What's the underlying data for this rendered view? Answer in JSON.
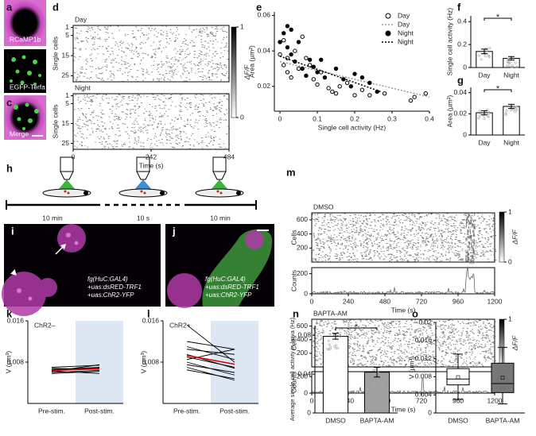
{
  "panel_letters": [
    "a",
    "b",
    "c",
    "d",
    "e",
    "f",
    "g",
    "h",
    "i",
    "j",
    "k",
    "l",
    "m",
    "n",
    "o"
  ],
  "images": {
    "a": "RCaMP1b",
    "b": "EGFP-Terfa",
    "c": "Merge",
    "i": [
      "fg(HuC:GAL4)",
      "+uas:dsRED-TRF1",
      "+uas:ChR2-YFP"
    ],
    "j": [
      "fg(HuC:GAL4)",
      "+uas:dsRED-TRF1",
      "+uas:ChR2-YFP"
    ]
  },
  "protocol": {
    "durations": [
      "10 min",
      "10 s",
      "10 min"
    ]
  },
  "chart_data": [
    {
      "type": "raster",
      "title": "Day",
      "ylabel": "Single cells",
      "ylim": [
        28,
        0
      ],
      "yticks": [
        1,
        5,
        15,
        25
      ],
      "xlim": [
        0,
        484
      ]
    },
    {
      "type": "raster",
      "title": "Night",
      "ylabel": "Single cells",
      "ylim": [
        28,
        0
      ],
      "yticks": [
        1,
        5,
        15,
        25
      ],
      "xlim": [
        0,
        484
      ],
      "xticks": [
        0,
        242,
        484
      ],
      "xlabel": "Time (s)"
    },
    {
      "type": "colorbar",
      "label": "ΔF/F",
      "ylim": [
        0,
        1
      ],
      "yticks": [
        0,
        1
      ]
    },
    {
      "type": "scatter",
      "xlabel": "Single cell activity (Hz)",
      "ylabel": "Area (µm²)",
      "xlim": [
        -0.015,
        0.4
      ],
      "xticks": [
        0,
        0.1,
        0.2,
        0.3,
        0.4
      ],
      "ylim": [
        0.006,
        0.062
      ],
      "yticks": [
        0.02,
        0.04,
        0.06
      ],
      "legend": "upper right",
      "series": [
        {
          "name": "Day",
          "marker": "open",
          "color": "#000000",
          "x": [
            0.01,
            0.02,
            0.02,
            0.03,
            0.04,
            0.05,
            0.06,
            0.07,
            0.08,
            0.09,
            0.1,
            0.11,
            0.13,
            0.14,
            0.15,
            0.16,
            0.18,
            0.2,
            0.22,
            0.24,
            0.28,
            0.35,
            0.36,
            0.39,
            0.0,
            0.01
          ],
          "values": [
            0.032,
            0.028,
            0.036,
            0.025,
            0.04,
            0.03,
            0.048,
            0.036,
            0.032,
            0.024,
            0.021,
            0.028,
            0.019,
            0.017,
            0.016,
            0.02,
            0.022,
            0.015,
            0.018,
            0.015,
            0.016,
            0.012,
            0.014,
            0.016,
            0.038,
            0.046
          ]
        },
        {
          "name": "Day",
          "style": "dotted",
          "color": "#999999",
          "x": [
            0,
            0.4
          ],
          "values": [
            0.034,
            0.014
          ]
        },
        {
          "name": "Night",
          "marker": "filled",
          "color": "#000000",
          "x": [
            0.0,
            0.01,
            0.02,
            0.02,
            0.03,
            0.03,
            0.04,
            0.05,
            0.06,
            0.07,
            0.08,
            0.09,
            0.1,
            0.11,
            0.12,
            0.15,
            0.17,
            0.19,
            0.2,
            0.22,
            0.24,
            0.26
          ],
          "values": [
            0.045,
            0.05,
            0.054,
            0.042,
            0.038,
            0.052,
            0.034,
            0.045,
            0.03,
            0.026,
            0.035,
            0.031,
            0.028,
            0.035,
            0.025,
            0.03,
            0.024,
            0.02,
            0.027,
            0.025,
            0.022,
            0.017
          ]
        },
        {
          "name": "Night",
          "style": "dotted",
          "color": "#000000",
          "x": [
            0,
            0.27
          ],
          "values": [
            0.037,
            0.017
          ]
        }
      ]
    },
    {
      "type": "bar",
      "ylabel": "Single cell activity (Hz)",
      "categories": [
        "Day",
        "Night"
      ],
      "values": [
        0.14,
        0.08
      ],
      "errors": [
        0.02,
        0.015
      ],
      "colors": [
        "#ffffff",
        "#ffffff"
      ],
      "ylim": [
        0,
        0.45
      ],
      "yticks": [
        0,
        0.2,
        0.4
      ],
      "annotation": "*"
    },
    {
      "type": "bar",
      "ylabel": "Area (µm²)",
      "categories": [
        "Day",
        "Night"
      ],
      "values": [
        0.021,
        0.027
      ],
      "errors": [
        0.002,
        0.002
      ],
      "colors": [
        "#ffffff",
        "#ffffff"
      ],
      "ylim": [
        0,
        0.045
      ],
      "yticks": [
        0,
        0.02,
        0.04
      ],
      "annotation": "*"
    },
    {
      "type": "raster",
      "title": "DMSO",
      "ylabel": "Cells",
      "ylim": [
        0,
        700
      ],
      "yticks": [
        200,
        400,
        600
      ],
      "xlim": [
        0,
        1200
      ]
    },
    {
      "type": "trace",
      "ylabel": "Counts",
      "ylim": [
        0,
        260
      ],
      "yticks": [
        0,
        200
      ],
      "xlim": [
        0,
        1200
      ],
      "xticks": [
        0,
        240,
        480,
        720,
        960,
        1200
      ],
      "xlabel": "Time (s)"
    },
    {
      "type": "colorbar",
      "label": "ΔF/F",
      "ylim": [
        0,
        1
      ],
      "yticks": [
        0,
        1
      ]
    },
    {
      "type": "raster",
      "title": "BAPTA-AM",
      "ylabel": "Cells",
      "ylim": [
        0,
        700
      ],
      "yticks": [
        200,
        400,
        600
      ],
      "xlim": [
        0,
        1200
      ]
    },
    {
      "type": "trace",
      "ylabel": "Counts",
      "ylim": [
        0,
        260
      ],
      "yticks": [
        0,
        200
      ],
      "xlim": [
        0,
        1200
      ],
      "xticks": [
        0,
        240,
        480,
        720,
        960,
        1200
      ],
      "xlabel": "Time (s)"
    },
    {
      "type": "colorbar",
      "label": "ΔF/F",
      "ylim": [
        0,
        1
      ],
      "yticks": [
        0,
        1
      ]
    },
    {
      "type": "line",
      "title": "ChR2–",
      "ylabel": "V (µm³)",
      "categories": [
        "Pre-stim.",
        "Post-stim."
      ],
      "ylim": [
        0,
        0.016
      ],
      "yticks": [
        0.008,
        0.016
      ],
      "highlight_color": "#dde8f4",
      "series": [
        {
          "color": "#000000",
          "values": [
            0.0068,
            0.0066
          ]
        },
        {
          "color": "#000000",
          "values": [
            0.0065,
            0.007
          ]
        },
        {
          "color": "#000000",
          "values": [
            0.0062,
            0.0075
          ]
        },
        {
          "color": "#000000",
          "values": [
            0.006,
            0.0064
          ]
        },
        {
          "color": "#000000",
          "values": [
            0.0058,
            0.0062
          ]
        },
        {
          "color": "#000000",
          "values": [
            0.0063,
            0.0058
          ]
        },
        {
          "color": "#000000",
          "values": [
            0.0066,
            0.0069
          ]
        },
        {
          "color": "#000000",
          "values": [
            0.007,
            0.0074
          ]
        },
        {
          "color": "#e00000",
          "values": [
            0.0064,
            0.0067
          ]
        }
      ]
    },
    {
      "type": "line",
      "title": "ChR2+",
      "ylabel": "V (µm³)",
      "categories": [
        "Pre-stim.",
        "Post-stim."
      ],
      "ylim": [
        0,
        0.016
      ],
      "yticks": [
        0.008,
        0.016
      ],
      "highlight_color": "#dde8f4",
      "series": [
        {
          "color": "#000000",
          "values": [
            0.0152,
            0.008
          ]
        },
        {
          "color": "#000000",
          "values": [
            0.012,
            0.0105
          ]
        },
        {
          "color": "#000000",
          "values": [
            0.011,
            0.0085
          ]
        },
        {
          "color": "#000000",
          "values": [
            0.0105,
            0.0095
          ]
        },
        {
          "color": "#000000",
          "values": [
            0.0095,
            0.0068
          ]
        },
        {
          "color": "#000000",
          "values": [
            0.009,
            0.007
          ]
        },
        {
          "color": "#000000",
          "values": [
            0.0085,
            0.0105
          ]
        },
        {
          "color": "#000000",
          "values": [
            0.008,
            0.0055
          ]
        },
        {
          "color": "#000000",
          "values": [
            0.0075,
            0.006
          ]
        },
        {
          "color": "#000000",
          "values": [
            0.007,
            0.0045
          ]
        },
        {
          "color": "#000000",
          "values": [
            0.0065,
            0.0048
          ]
        },
        {
          "color": "#e00000",
          "values": [
            0.0093,
            0.0076
          ]
        }
      ]
    },
    {
      "type": "bar",
      "ylabel": "Average single cell activity in larva (Hz)",
      "categories": [
        "DMSO",
        "BAPTA-AM"
      ],
      "values": [
        0.079,
        0.042
      ],
      "errors": [
        0.003,
        0.005
      ],
      "colors": [
        "#ffffff",
        "#a0a0a0"
      ],
      "ylim": [
        0,
        0.09
      ],
      "yticks": [
        0,
        0.04,
        0.08
      ],
      "annotation": "*"
    },
    {
      "type": "box",
      "ylabel": "V (µm³)",
      "categories": [
        "DMSO",
        "BAPTA-AM"
      ],
      "colors": [
        "#ffffff",
        "#777777"
      ],
      "ylim": [
        0,
        0.02
      ],
      "yticks": [
        0,
        0.004,
        0.008,
        0.012,
        0.016,
        0.02
      ],
      "boxes": [
        {
          "whislo": 0.003,
          "q1": 0.0062,
          "med": 0.0075,
          "q3": 0.0098,
          "whishi": 0.013,
          "mean": 0.0079
        },
        {
          "whislo": 0.002,
          "q1": 0.0045,
          "med": 0.0065,
          "q3": 0.011,
          "whishi": 0.0145,
          "mean": 0.0078
        }
      ]
    }
  ]
}
